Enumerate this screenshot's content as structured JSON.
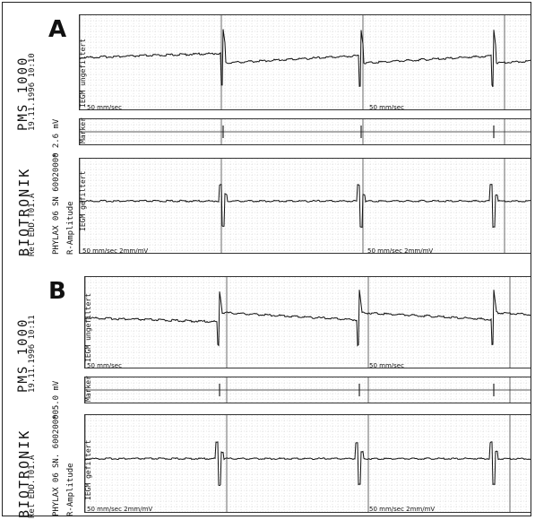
{
  "panels": [
    {
      "letter": "A",
      "device": "BIOTRONIK",
      "release": "Rel EDD.T01.A",
      "programmer": "PMS 1000",
      "datetime": "19.11.1996 10:10",
      "model": "PHYLAX 06",
      "serial": "SN 60020000",
      "amplitude_label": "R-Amplitude",
      "scale": "* 2.6 mV",
      "channel_top": "IEGM ungefiltert",
      "channel_marker": "Marker",
      "channel_bottom": "IEGM gefiltert",
      "speed_1": "50 mm/sec",
      "speed_2": "50 mm/sec",
      "speed_3": "50 mm/sec 2mm/mV",
      "speed_4": "50 mm/sec 2mm/mV"
    },
    {
      "letter": "B",
      "device": "BIOTRONIK",
      "release": "Rel EDD.T01.A",
      "programmer": "PMS 1000",
      "datetime": "19.11.1996 10:11",
      "model": "PHYLAX 06",
      "serial": "SN. 60020000",
      "amplitude_label": "R-Amplitude",
      "scale": "* 5.0 mV",
      "channel_top": "IEGM ungefiltert",
      "channel_marker": "Marker",
      "channel_bottom": "IEGM gefiltert",
      "speed_1": "50 mm/sec",
      "speed_2": "50 mm/sec",
      "speed_3": "50 mm/sec 2mm/mV",
      "speed_4": "50 mm/sec 2mm/mV"
    }
  ]
}
